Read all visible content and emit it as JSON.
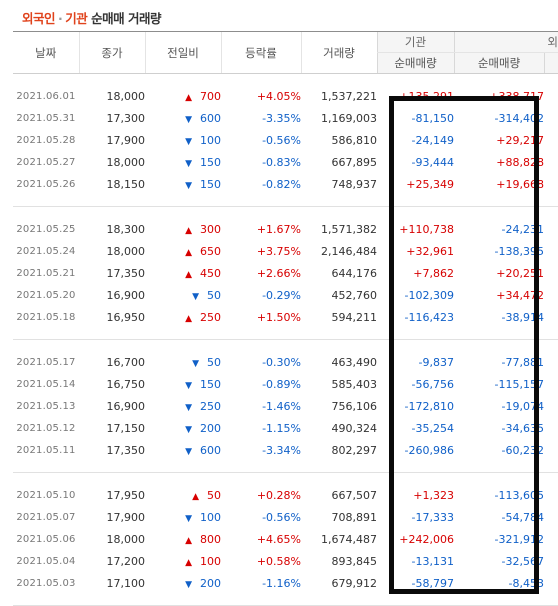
{
  "title": {
    "part1": "외국인",
    "separator": "·",
    "part2": "기관",
    "part3": "순매매 거래량"
  },
  "headers": {
    "date": "날짜",
    "close": "종가",
    "change": "전일비",
    "rate": "등락률",
    "volume": "거래량",
    "institution_group": "기관",
    "foreign_group": "외",
    "institution_net": "순매매량",
    "foreign_net": "순매매량"
  },
  "groups": [
    [
      {
        "date": "2021.06.01",
        "close": "18,000",
        "dir": "up",
        "change": "700",
        "rate": "+4.05%",
        "volume": "1,537,221",
        "inst": "+135,291",
        "frgn": "+338,717"
      },
      {
        "date": "2021.05.31",
        "close": "17,300",
        "dir": "down",
        "change": "600",
        "rate": "-3.35%",
        "volume": "1,169,003",
        "inst": "-81,150",
        "frgn": "-314,402"
      },
      {
        "date": "2021.05.28",
        "close": "17,900",
        "dir": "down",
        "change": "100",
        "rate": "-0.56%",
        "volume": "586,810",
        "inst": "-24,149",
        "frgn": "+29,217"
      },
      {
        "date": "2021.05.27",
        "close": "18,000",
        "dir": "down",
        "change": "150",
        "rate": "-0.83%",
        "volume": "667,895",
        "inst": "-93,444",
        "frgn": "+88,828"
      },
      {
        "date": "2021.05.26",
        "close": "18,150",
        "dir": "down",
        "change": "150",
        "rate": "-0.82%",
        "volume": "748,937",
        "inst": "+25,349",
        "frgn": "+19,668"
      }
    ],
    [
      {
        "date": "2021.05.25",
        "close": "18,300",
        "dir": "up",
        "change": "300",
        "rate": "+1.67%",
        "volume": "1,571,382",
        "inst": "+110,738",
        "frgn": "-24,231"
      },
      {
        "date": "2021.05.24",
        "close": "18,000",
        "dir": "up",
        "change": "650",
        "rate": "+3.75%",
        "volume": "2,146,484",
        "inst": "+32,961",
        "frgn": "-138,395"
      },
      {
        "date": "2021.05.21",
        "close": "17,350",
        "dir": "up",
        "change": "450",
        "rate": "+2.66%",
        "volume": "644,176",
        "inst": "+7,862",
        "frgn": "+20,251"
      },
      {
        "date": "2021.05.20",
        "close": "16,900",
        "dir": "down",
        "change": "50",
        "rate": "-0.29%",
        "volume": "452,760",
        "inst": "-102,309",
        "frgn": "+34,472"
      },
      {
        "date": "2021.05.18",
        "close": "16,950",
        "dir": "up",
        "change": "250",
        "rate": "+1.50%",
        "volume": "594,211",
        "inst": "-116,423",
        "frgn": "-38,914"
      }
    ],
    [
      {
        "date": "2021.05.17",
        "close": "16,700",
        "dir": "down",
        "change": "50",
        "rate": "-0.30%",
        "volume": "463,490",
        "inst": "-9,837",
        "frgn": "-77,881"
      },
      {
        "date": "2021.05.14",
        "close": "16,750",
        "dir": "down",
        "change": "150",
        "rate": "-0.89%",
        "volume": "585,403",
        "inst": "-56,756",
        "frgn": "-115,157"
      },
      {
        "date": "2021.05.13",
        "close": "16,900",
        "dir": "down",
        "change": "250",
        "rate": "-1.46%",
        "volume": "756,106",
        "inst": "-172,810",
        "frgn": "-19,074"
      },
      {
        "date": "2021.05.12",
        "close": "17,150",
        "dir": "down",
        "change": "200",
        "rate": "-1.15%",
        "volume": "490,324",
        "inst": "-35,254",
        "frgn": "-34,635"
      },
      {
        "date": "2021.05.11",
        "close": "17,350",
        "dir": "down",
        "change": "600",
        "rate": "-3.34%",
        "volume": "802,297",
        "inst": "-260,986",
        "frgn": "-60,232"
      }
    ],
    [
      {
        "date": "2021.05.10",
        "close": "17,950",
        "dir": "up",
        "change": "50",
        "rate": "+0.28%",
        "volume": "667,507",
        "inst": "+1,323",
        "frgn": "-113,605"
      },
      {
        "date": "2021.05.07",
        "close": "17,900",
        "dir": "down",
        "change": "100",
        "rate": "-0.56%",
        "volume": "708,891",
        "inst": "-17,333",
        "frgn": "-54,784"
      },
      {
        "date": "2021.05.06",
        "close": "18,000",
        "dir": "up",
        "change": "800",
        "rate": "+4.65%",
        "volume": "1,674,487",
        "inst": "+242,006",
        "frgn": "-321,912"
      },
      {
        "date": "2021.05.04",
        "close": "17,200",
        "dir": "up",
        "change": "100",
        "rate": "+0.58%",
        "volume": "893,845",
        "inst": "-13,131",
        "frgn": "-32,567"
      },
      {
        "date": "2021.05.03",
        "close": "17,100",
        "dir": "down",
        "change": "200",
        "rate": "-1.16%",
        "volume": "679,912",
        "inst": "-58,797",
        "frgn": "-8,453"
      }
    ]
  ],
  "colors": {
    "up": "#d70000",
    "down": "#1060c8",
    "title_accent": "#e0421b",
    "highlight_box": "#0a0a0a"
  }
}
